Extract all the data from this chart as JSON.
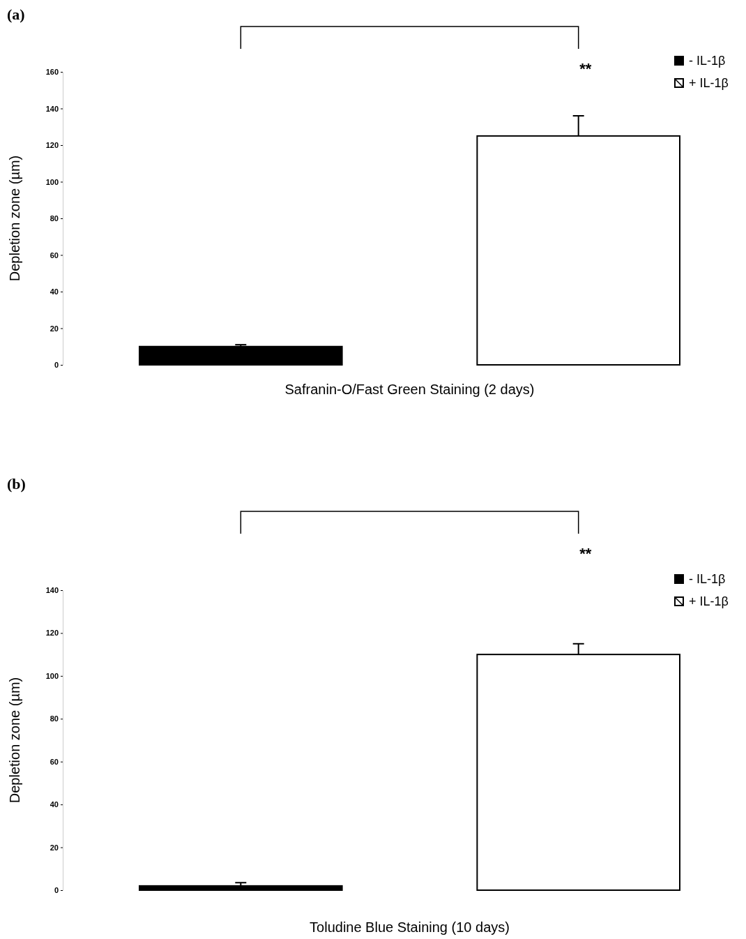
{
  "chart_data": [
    {
      "type": "bar",
      "title": "(a)",
      "xlabel": "Safranin-O/Fast Green Staining (2 days)",
      "ylabel": "Depletion zone (µm)",
      "categories": [
        null
      ],
      "series": [
        {
          "name": "- IL-1β",
          "color": "#000000",
          "values": [
            10
          ],
          "errors": [
            [
              10,
              11
            ]
          ]
        },
        {
          "name": "+ IL-1β",
          "color": "#ffffff",
          "values": [
            125
          ],
          "errors": [
            [
              125,
              136
            ]
          ]
        }
      ],
      "ylim": [
        0,
        160
      ],
      "yticks": [
        0,
        20,
        40,
        60,
        80,
        100,
        120,
        140,
        160
      ],
      "grid": false,
      "legend": "top right",
      "annotations": [
        "**"
      ]
    },
    {
      "type": "bar",
      "title": "(b)",
      "xlabel": "Toludine Blue Staining  (10 days)",
      "ylabel": "Depletion zone (µm)",
      "categories": [
        null
      ],
      "series": [
        {
          "name": "- IL-1β",
          "color": "#000000",
          "values": [
            2
          ],
          "errors": [
            [
              2,
              3.5
            ]
          ]
        },
        {
          "name": "+ IL-1β",
          "color": "#ffffff",
          "values": [
            110
          ],
          "errors": [
            [
              110,
              115
            ]
          ]
        }
      ],
      "ylim": [
        0,
        140
      ],
      "yticks": [
        0,
        20,
        40,
        60,
        80,
        100,
        120,
        140
      ],
      "grid": false,
      "legend": "top right",
      "annotations": [
        "**"
      ]
    }
  ]
}
